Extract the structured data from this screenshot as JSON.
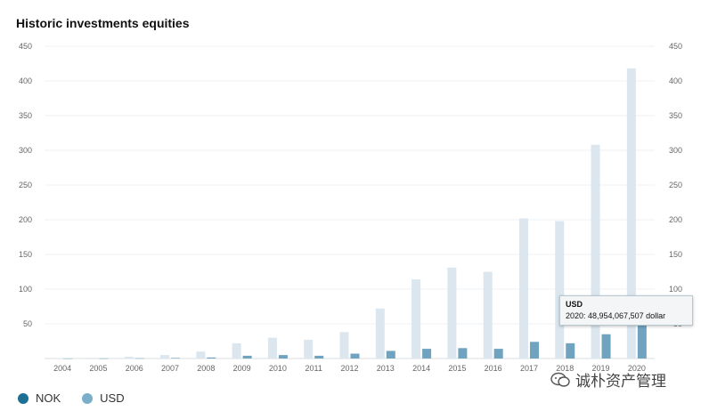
{
  "chart_data": {
    "type": "bar",
    "title": "Historic investments equities",
    "categories": [
      "2004",
      "2005",
      "2006",
      "2007",
      "2008",
      "2009",
      "2010",
      "2011",
      "2012",
      "2013",
      "2014",
      "2015",
      "2016",
      "2017",
      "2018",
      "2019",
      "2020"
    ],
    "series": [
      {
        "name": "NOK",
        "color": "#dbe6ee",
        "values": [
          0.5,
          1,
          2.5,
          5,
          10,
          22,
          30,
          27,
          38,
          72,
          114,
          131,
          125,
          202,
          198,
          308,
          418
        ]
      },
      {
        "name": "USD",
        "color": "#6fa3bf",
        "values": [
          0.1,
          0.2,
          0.4,
          0.8,
          1.5,
          4,
          5,
          4,
          7,
          11,
          14,
          15,
          14,
          24,
          22,
          35,
          49
        ]
      }
    ],
    "yticks": [
      50,
      100,
      150,
      200,
      250,
      300,
      350,
      400,
      450
    ],
    "ylim": [
      0,
      450
    ],
    "grid": true,
    "legend_position": "bottom-left"
  },
  "legend": [
    {
      "label": "NOK",
      "color": "#1f6f95"
    },
    {
      "label": "USD",
      "color": "#7aaec9"
    }
  ],
  "tooltip": {
    "title": "USD",
    "text": "2020: 48,954,067,507 dollar"
  },
  "watermark": {
    "text": "诚朴资产管理",
    "icon": "wechat-icon"
  }
}
